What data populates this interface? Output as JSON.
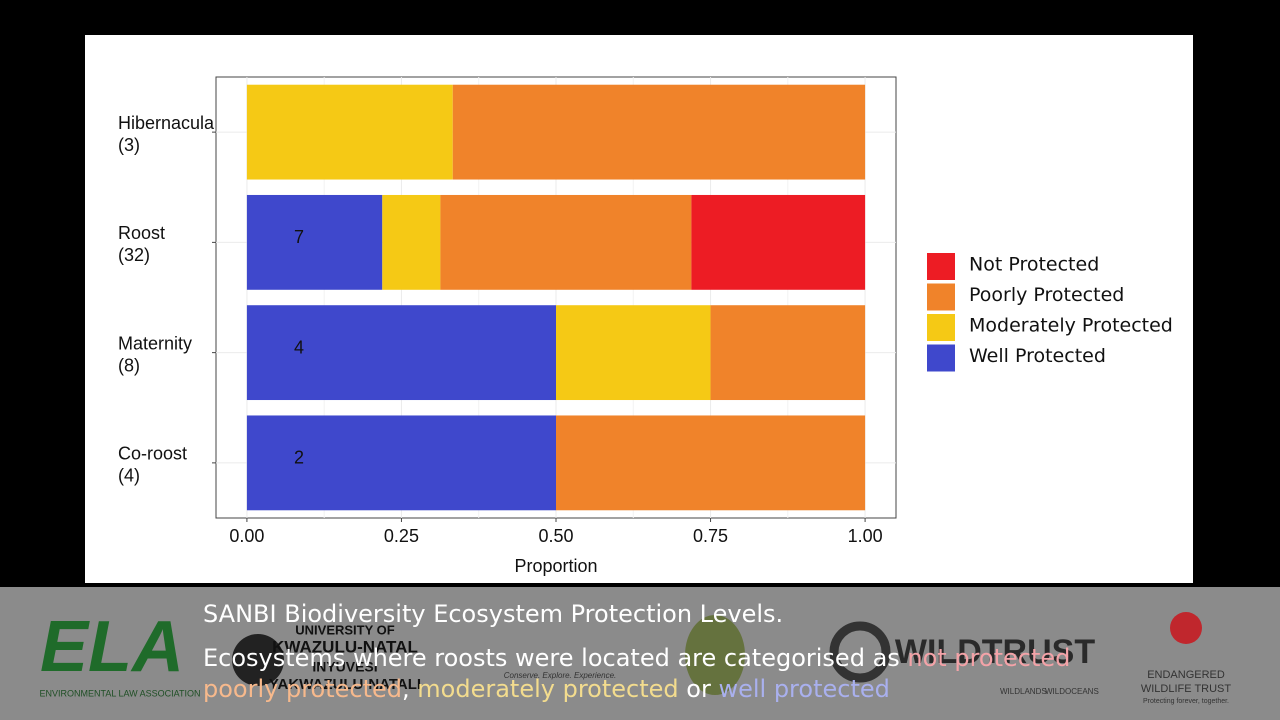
{
  "chart_data": {
    "type": "stacked_barh",
    "categories": [
      "Hibernacula",
      "Roost",
      "Maternity",
      "Co-roost"
    ],
    "category_counts": [
      "(3)",
      "(32)",
      "(8)",
      "(4)"
    ],
    "series": [
      {
        "name": "Well Protected",
        "color": "#3f48cc",
        "values": [
          0,
          0.219,
          0.5,
          0.5
        ]
      },
      {
        "name": "Moderately Protected",
        "color": "#f5c915",
        "values": [
          0.333,
          0.094,
          0.25,
          0
        ]
      },
      {
        "name": "Poorly Protected",
        "color": "#f0832a",
        "values": [
          0.667,
          0.406,
          0.25,
          0.5
        ]
      },
      {
        "name": "Not Protected",
        "color": "#ed1c24",
        "values": [
          0,
          0.281,
          0,
          0
        ]
      }
    ],
    "annotations": [
      "7",
      "4",
      "2"
    ],
    "xlabel": "Proportion",
    "xlim": [
      -0.05,
      1.05
    ],
    "xticks": [
      {
        "value": 0,
        "label": "0.00"
      },
      {
        "value": 0.25,
        "label": "0.25"
      },
      {
        "value": 0.5,
        "label": "0.50"
      },
      {
        "value": 0.75,
        "label": "0.75"
      },
      {
        "value": 1,
        "label": "1.00"
      }
    ],
    "grid": true,
    "legend": "right"
  },
  "caption": {
    "line1": "SANBI Biodiversity Ecosystem Protection Levels.",
    "line2": [
      {
        "text": "Ecosystems where roosts were located are categorised as ",
        "color": "#ffffff"
      },
      {
        "text": "not protected",
        "color": "#f4a3a8"
      }
    ],
    "line3": [
      {
        "text": "poorly protected",
        "color": "#f7b98c"
      },
      {
        "text": ", ",
        "color": "#ffffff"
      },
      {
        "text": "moderately protected",
        "color": "#f3dc8e"
      },
      {
        "text": " or ",
        "color": "#ffffff"
      },
      {
        "text": "well protected",
        "color": "#a9b0ee"
      }
    ]
  },
  "logos": {
    "ela": "ELA",
    "ela_sub": "ENVIRONMENTAL LAW ASSOCIATION",
    "ukzn1": "UNIVERSITY OF",
    "ukzn2": "KWAZULU-NATAL",
    "ukzn3": "INYUVESI",
    "ukzn4": "YAKWAZULU-NATALI",
    "cape": "Conserve. Explore. Experience.",
    "wildtrust": "WILDTRUST",
    "wildlands": "WILDLANDS",
    "wildoceans": "WILDOCEANS",
    "ewt1": "ENDANGERED",
    "ewt2": "WILDLIFE TRUST",
    "ewt3": "Protecting forever, together."
  }
}
